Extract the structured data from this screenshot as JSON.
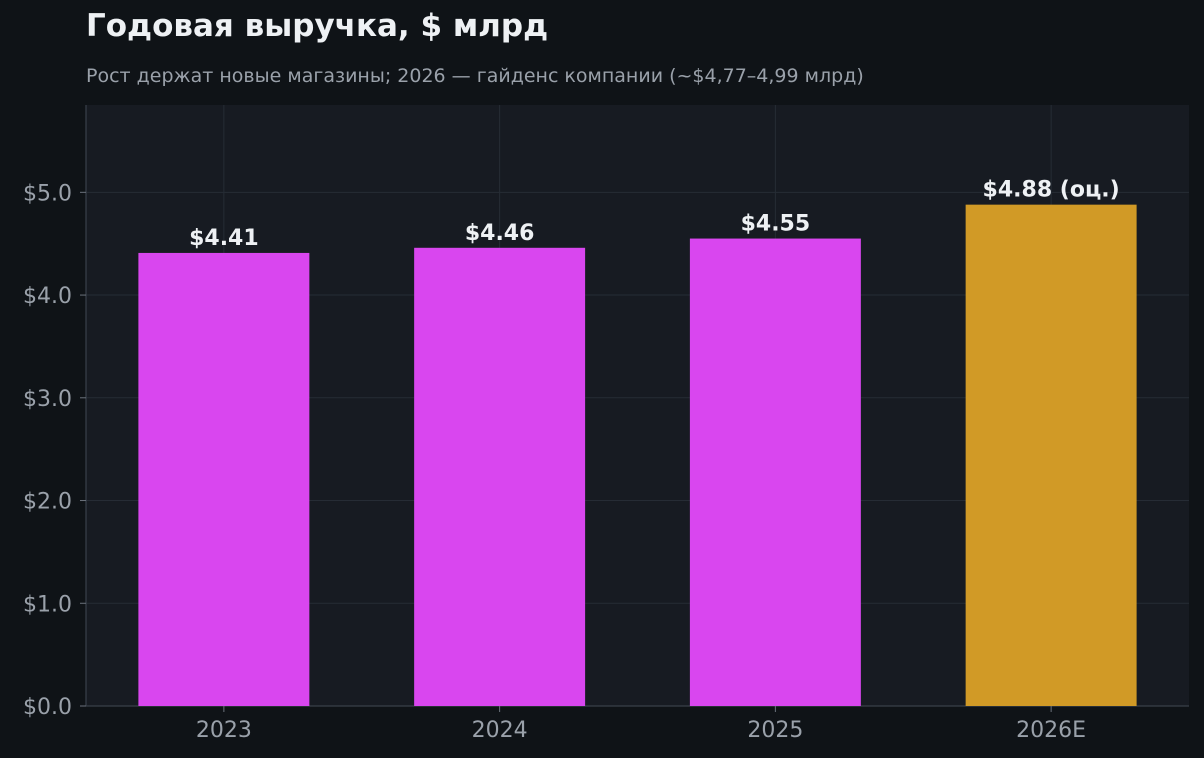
{
  "chart_data": {
    "type": "bar",
    "title": "Годовая выручка, $ млрд",
    "subtitle": "Рост держат новые магазины; 2026 — гайденс компании (~$4,77–4,99 млрд)",
    "categories": [
      "2023",
      "2024",
      "2025",
      "2026E"
    ],
    "values": [
      4.41,
      4.46,
      4.55,
      4.88
    ],
    "value_labels": [
      "$4.41",
      "$4.46",
      "$4.55",
      "$4.88 (оц.)"
    ],
    "yticks": [
      0,
      1,
      2,
      3,
      4,
      5
    ],
    "ytick_labels": [
      "$0.0",
      "$1.0",
      "$2.0",
      "$3.0",
      "$4.0",
      "$5.0"
    ],
    "ylim": [
      0,
      5.85
    ],
    "grid": true,
    "legend": "none",
    "colors": {
      "actual": "#d946ef",
      "estimate": "#d19a26",
      "background": "#0f1317",
      "plot_background": "#171b22",
      "grid": "#262c35",
      "tick_text": "#9aa1aa",
      "label_text": "#eef1f4"
    },
    "bar_colors": [
      "#d946ef",
      "#d946ef",
      "#d946ef",
      "#d19a26"
    ]
  }
}
